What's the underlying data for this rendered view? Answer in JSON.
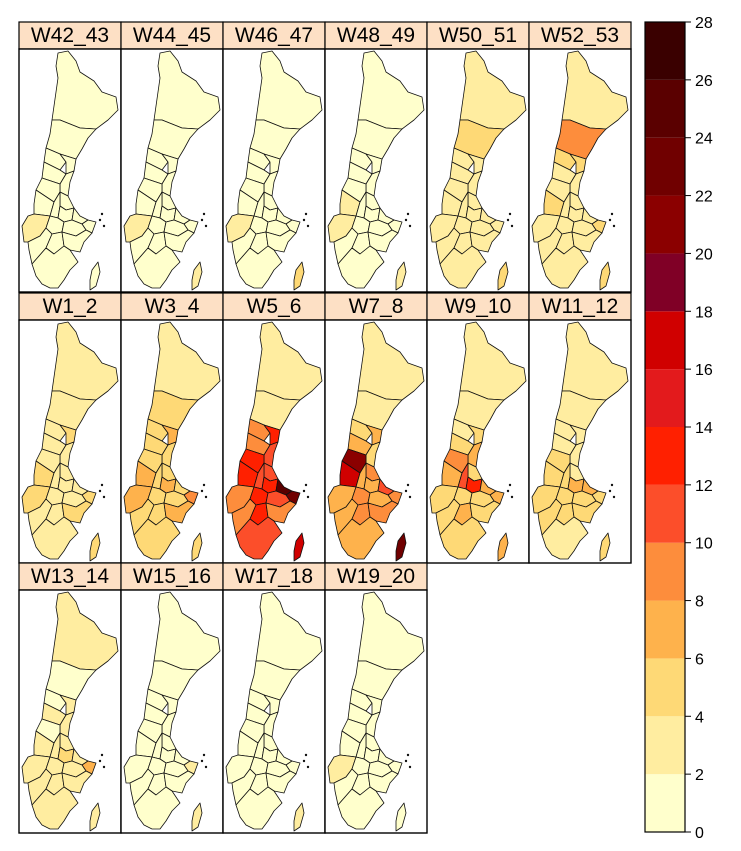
{
  "panels": [
    {
      "label": "W42_43",
      "values": [
        0,
        0,
        0,
        1,
        0,
        1,
        0,
        1,
        0,
        1,
        1,
        1,
        0,
        2,
        0,
        0,
        1,
        1,
        1,
        0,
        0
      ]
    },
    {
      "label": "W44_45",
      "values": [
        1,
        1,
        1,
        1,
        1,
        1,
        0,
        1,
        0,
        1,
        1,
        1,
        1,
        2,
        0,
        0,
        1,
        1,
        1,
        0,
        2
      ]
    },
    {
      "label": "W46_47",
      "values": [
        1,
        1,
        1,
        1,
        1,
        1,
        1,
        1,
        1,
        1,
        1,
        1,
        1,
        2,
        1,
        1,
        1,
        1,
        1,
        1,
        5
      ]
    },
    {
      "label": "W48_49",
      "values": [
        1,
        1,
        1,
        1,
        1,
        1,
        1,
        1,
        3,
        1,
        1,
        1,
        1,
        2,
        1,
        1,
        1,
        1,
        1,
        1,
        3
      ]
    },
    {
      "label": "W50_51",
      "values": [
        3,
        4,
        2,
        2,
        2,
        2,
        2,
        2,
        3,
        2,
        2,
        2,
        2,
        3,
        2,
        2,
        2,
        2,
        2,
        2,
        4
      ]
    },
    {
      "label": "W52_53",
      "values": [
        3,
        8,
        4,
        5,
        3,
        3,
        3,
        3,
        5,
        3,
        3,
        3,
        4,
        3,
        3,
        3,
        3,
        3,
        3,
        3,
        5
      ]
    },
    {
      "label": "W1_2",
      "values": [
        2,
        3,
        3,
        4,
        3,
        3,
        3,
        3,
        4,
        3,
        3,
        3,
        4,
        5,
        3,
        3,
        3,
        3,
        4,
        3,
        4
      ]
    },
    {
      "label": "W3_4",
      "values": [
        3,
        4,
        5,
        6,
        5,
        4,
        5,
        4,
        6,
        5,
        7,
        5,
        9,
        6,
        5,
        5,
        5,
        5,
        6,
        5,
        5
      ]
    },
    {
      "label": "W5_6",
      "values": [
        3,
        3,
        8,
        12,
        8,
        11,
        13,
        11,
        13,
        10,
        12,
        25,
        23,
        8,
        12,
        11,
        9,
        12,
        9,
        11,
        17
      ]
    },
    {
      "label": "W7_8",
      "values": [
        3,
        3,
        5,
        6,
        6,
        5,
        21,
        8,
        17,
        6,
        7,
        10,
        9,
        6,
        8,
        6,
        7,
        9,
        8,
        7,
        22
      ]
    },
    {
      "label": "W9_10",
      "values": [
        2,
        3,
        3,
        5,
        5,
        7,
        9,
        4,
        6,
        10,
        12,
        7,
        6,
        5,
        5,
        5,
        4,
        6,
        5,
        4,
        6
      ]
    },
    {
      "label": "W11_12",
      "values": [
        2,
        2,
        3,
        3,
        3,
        3,
        5,
        3,
        4,
        5,
        7,
        6,
        5,
        4,
        4,
        4,
        4,
        5,
        4,
        3,
        5
      ]
    },
    {
      "label": "W13_14",
      "values": [
        3,
        1,
        1,
        2,
        2,
        2,
        1,
        2,
        3,
        2,
        4,
        3,
        7,
        2,
        2,
        2,
        2,
        2,
        2,
        2,
        3
      ]
    },
    {
      "label": "W15_16",
      "values": [
        1,
        1,
        1,
        1,
        1,
        1,
        1,
        1,
        1,
        1,
        1,
        1,
        2,
        1,
        1,
        1,
        1,
        1,
        1,
        1,
        3
      ]
    },
    {
      "label": "W17_18",
      "values": [
        1,
        1,
        1,
        1,
        1,
        1,
        1,
        1,
        1,
        1,
        1,
        1,
        1,
        1,
        1,
        1,
        1,
        1,
        1,
        1,
        2
      ]
    },
    {
      "label": "W19_20",
      "values": [
        1,
        1,
        1,
        1,
        0,
        1,
        0,
        0,
        1,
        1,
        1,
        1,
        1,
        2,
        0,
        1,
        1,
        1,
        1,
        1,
        1
      ]
    }
  ],
  "legend": {
    "min": 0,
    "max": 28,
    "step": 2,
    "tick_labels": [
      "0",
      "2",
      "4",
      "6",
      "8",
      "10",
      "12",
      "14",
      "16",
      "18",
      "20",
      "22",
      "24",
      "26",
      "28"
    ],
    "colors": [
      "#ffffcc",
      "#ffeda0",
      "#fed976",
      "#feb24c",
      "#fd8d3c",
      "#fc4e2a",
      "#ff2000",
      "#e31a1c",
      "#d00000",
      "#800026",
      "#8b0000",
      "#700000",
      "#5a0000",
      "#3a0000"
    ]
  }
}
